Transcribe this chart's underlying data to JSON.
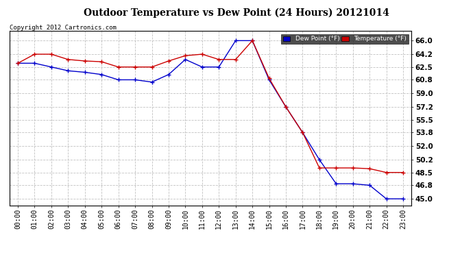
{
  "title": "Outdoor Temperature vs Dew Point (24 Hours) 20121014",
  "copyright": "Copyright 2012 Cartronics.com",
  "x_labels": [
    "00:00",
    "01:00",
    "02:00",
    "03:00",
    "04:00",
    "05:00",
    "06:00",
    "07:00",
    "08:00",
    "09:00",
    "10:00",
    "11:00",
    "12:00",
    "13:00",
    "14:00",
    "15:00",
    "16:00",
    "17:00",
    "18:00",
    "19:00",
    "20:00",
    "21:00",
    "22:00",
    "23:00"
  ],
  "temperature": [
    63.0,
    64.2,
    64.2,
    63.5,
    63.3,
    63.2,
    62.5,
    62.5,
    62.5,
    63.3,
    64.0,
    64.2,
    63.5,
    63.5,
    66.0,
    61.0,
    57.2,
    53.8,
    49.1,
    49.1,
    49.1,
    49.0,
    48.5,
    48.5
  ],
  "dew_point": [
    63.0,
    63.0,
    62.5,
    62.0,
    61.8,
    61.5,
    60.8,
    60.8,
    60.5,
    61.5,
    63.5,
    62.5,
    62.5,
    66.0,
    66.0,
    60.8,
    57.2,
    53.8,
    50.2,
    47.0,
    47.0,
    46.8,
    45.0,
    45.0
  ],
  "temp_color": "#cc0000",
  "dew_color": "#0000cc",
  "bg_color": "#ffffff",
  "plot_bg": "#ffffff",
  "grid_color": "#bbbbbb",
  "ylim_min": 44.1,
  "ylim_max": 67.3,
  "yticks": [
    45.0,
    46.8,
    48.5,
    50.2,
    52.0,
    53.8,
    55.5,
    57.2,
    59.0,
    60.8,
    62.5,
    64.2,
    66.0
  ],
  "legend_dew_label": "Dew Point (°F)",
  "legend_temp_label": "Temperature (°F)",
  "legend_dew_bg": "#0000cc",
  "legend_temp_bg": "#cc0000",
  "title_fontsize": 10,
  "copyright_fontsize": 6.5,
  "tick_fontsize": 7,
  "ytick_fontsize": 7.5
}
